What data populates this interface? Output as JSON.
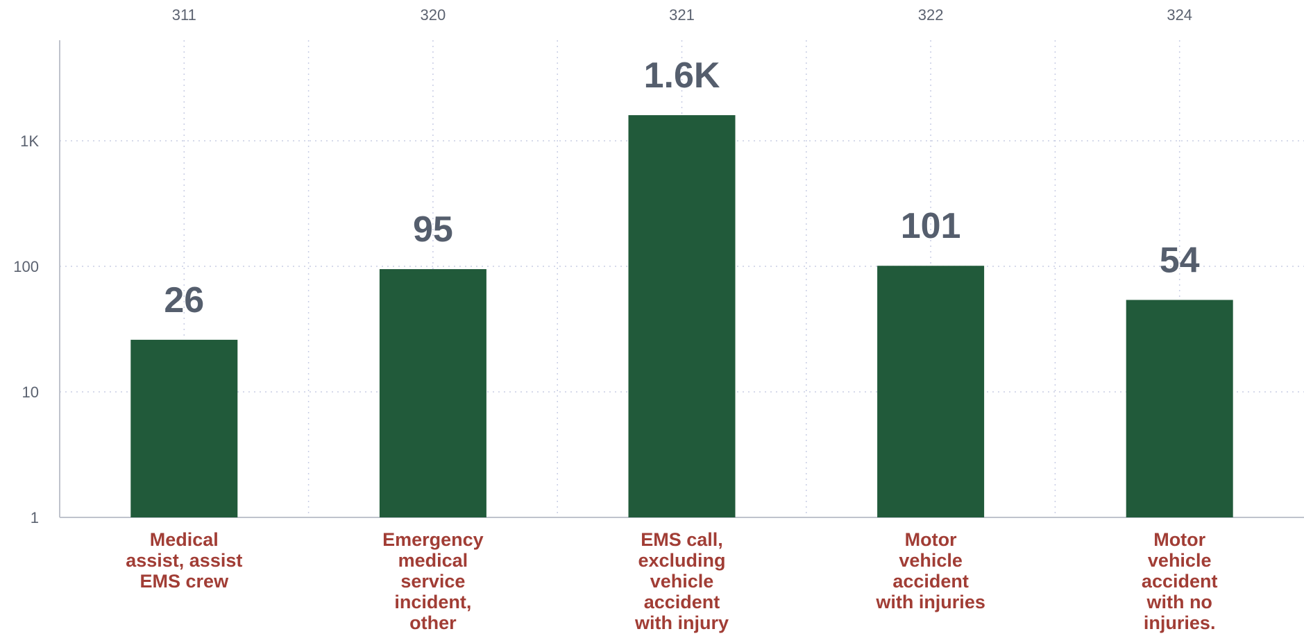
{
  "chart_data": {
    "type": "bar",
    "scale": "log",
    "ylim": [
      1,
      2500
    ],
    "yticks": [
      {
        "value": 1,
        "label": "1"
      },
      {
        "value": 10,
        "label": "10"
      },
      {
        "value": 100,
        "label": "100"
      },
      {
        "value": 1000,
        "label": "1K"
      }
    ],
    "top_labels": [
      "311",
      "320",
      "321",
      "322",
      "324"
    ],
    "categories": [
      [
        "Medical",
        "assist, assist",
        "EMS crew"
      ],
      [
        "Emergency",
        "medical",
        "service",
        "incident,",
        "other"
      ],
      [
        "EMS call,",
        "excluding",
        "vehicle",
        "accident",
        "with injury"
      ],
      [
        "Motor",
        "vehicle",
        "accident",
        "with injuries"
      ],
      [
        "Motor",
        "vehicle",
        "accident",
        "with no",
        "injuries."
      ]
    ],
    "values": [
      26,
      95,
      1600,
      101,
      54
    ],
    "data_labels": [
      "26",
      "95",
      "1.6K",
      "101",
      "54"
    ],
    "grid": true,
    "colors": {
      "bar": "#215a3a",
      "category_text": "#a13d35",
      "data_label": "#555e6d",
      "tick_text": "#5b6270"
    }
  }
}
